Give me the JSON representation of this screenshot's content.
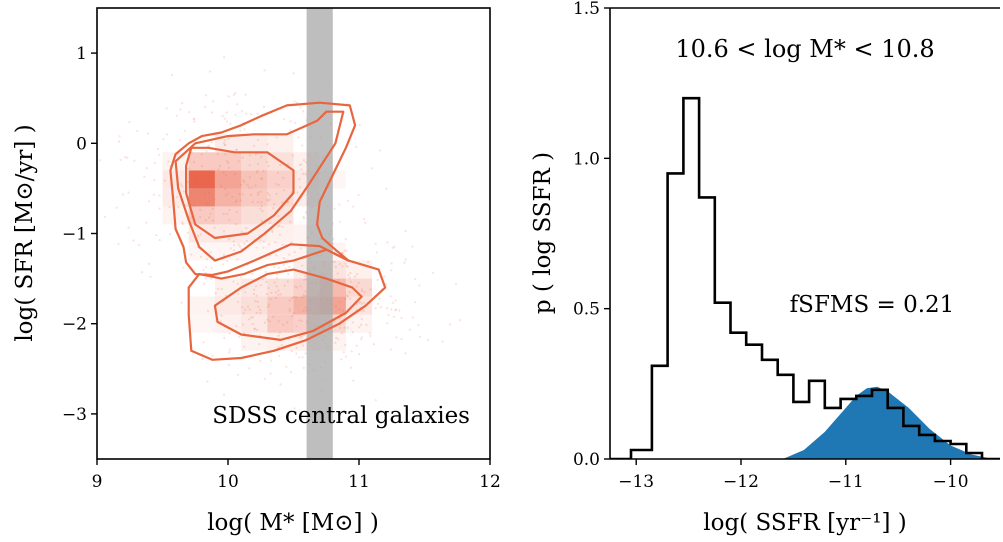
{
  "chart_data": [
    {
      "type": "heatmap",
      "xlabel": "log( M* [M⊙] )",
      "ylabel": "log( SFR [M⊙/yr] )",
      "xlim": [
        9,
        12
      ],
      "ylim": [
        -3.5,
        1.5
      ],
      "xticks": [
        9,
        10,
        11,
        12
      ],
      "yticks": [
        1,
        0,
        -1,
        -2,
        -3
      ],
      "annotation": "SDSS central galaxies",
      "highlight_band": {
        "x_range": [
          10.6,
          10.8
        ],
        "color": "#a8a8a8"
      },
      "colors": {
        "cell": "#e8563a",
        "contour": "#e8663f",
        "scatter": "#f08a6e"
      },
      "cells": [
        {
          "x": 9.8,
          "y": -0.4,
          "w": 1.0
        },
        {
          "x": 9.8,
          "y": -0.6,
          "w": 0.8
        },
        {
          "x": 9.8,
          "y": -0.2,
          "w": 0.35
        },
        {
          "x": 9.8,
          "y": -0.8,
          "w": 0.35
        },
        {
          "x": 10.0,
          "y": -0.4,
          "w": 0.6
        },
        {
          "x": 10.0,
          "y": -0.6,
          "w": 0.5
        },
        {
          "x": 10.0,
          "y": -0.2,
          "w": 0.35
        },
        {
          "x": 10.0,
          "y": -0.8,
          "w": 0.3
        },
        {
          "x": 10.2,
          "y": -0.4,
          "w": 0.4
        },
        {
          "x": 10.2,
          "y": -0.6,
          "w": 0.35
        },
        {
          "x": 10.2,
          "y": -0.2,
          "w": 0.25
        },
        {
          "x": 10.2,
          "y": -0.8,
          "w": 0.22
        },
        {
          "x": 10.4,
          "y": -0.4,
          "w": 0.3
        },
        {
          "x": 10.4,
          "y": -0.6,
          "w": 0.25
        },
        {
          "x": 10.4,
          "y": -0.2,
          "w": 0.2
        },
        {
          "x": 10.4,
          "y": -0.8,
          "w": 0.18
        },
        {
          "x": 9.6,
          "y": -0.4,
          "w": 0.15
        },
        {
          "x": 9.6,
          "y": -0.6,
          "w": 0.12
        },
        {
          "x": 9.6,
          "y": -0.8,
          "w": 0.08
        },
        {
          "x": 9.6,
          "y": -0.2,
          "w": 0.08
        },
        {
          "x": 9.8,
          "y": -1.0,
          "w": 0.15
        },
        {
          "x": 10.0,
          "y": -1.0,
          "w": 0.15
        },
        {
          "x": 10.2,
          "y": -1.0,
          "w": 0.12
        },
        {
          "x": 10.4,
          "y": -1.0,
          "w": 0.1
        },
        {
          "x": 10.0,
          "y": 0.0,
          "w": 0.12
        },
        {
          "x": 10.2,
          "y": 0.0,
          "w": 0.12
        },
        {
          "x": 10.4,
          "y": 0.0,
          "w": 0.1
        },
        {
          "x": 10.6,
          "y": -0.4,
          "w": 0.15
        },
        {
          "x": 10.6,
          "y": -0.6,
          "w": 0.12
        },
        {
          "x": 10.6,
          "y": -0.2,
          "w": 0.1
        },
        {
          "x": 9.8,
          "y": -1.2,
          "w": 0.06
        },
        {
          "x": 10.0,
          "y": -1.2,
          "w": 0.06
        },
        {
          "x": 10.2,
          "y": -1.2,
          "w": 0.06
        },
        {
          "x": 10.4,
          "y": -1.2,
          "w": 0.07
        },
        {
          "x": 10.6,
          "y": -1.2,
          "w": 0.08
        },
        {
          "x": 10.6,
          "y": -1.0,
          "w": 0.08
        },
        {
          "x": 10.8,
          "y": -0.4,
          "w": 0.06
        },
        {
          "x": 10.4,
          "y": -1.8,
          "w": 0.35
        },
        {
          "x": 10.6,
          "y": -1.8,
          "w": 0.5
        },
        {
          "x": 10.8,
          "y": -1.8,
          "w": 0.6
        },
        {
          "x": 10.8,
          "y": -1.6,
          "w": 0.45
        },
        {
          "x": 10.6,
          "y": -1.6,
          "w": 0.3
        },
        {
          "x": 10.4,
          "y": -1.6,
          "w": 0.22
        },
        {
          "x": 10.2,
          "y": -1.8,
          "w": 0.22
        },
        {
          "x": 10.2,
          "y": -2.0,
          "w": 0.15
        },
        {
          "x": 10.4,
          "y": -2.0,
          "w": 0.35
        },
        {
          "x": 10.6,
          "y": -2.0,
          "w": 0.3
        },
        {
          "x": 10.8,
          "y": -2.0,
          "w": 0.25
        },
        {
          "x": 10.0,
          "y": -1.8,
          "w": 0.15
        },
        {
          "x": 10.0,
          "y": -2.0,
          "w": 0.1
        },
        {
          "x": 10.2,
          "y": -1.6,
          "w": 0.15
        },
        {
          "x": 11.0,
          "y": -1.6,
          "w": 0.25
        },
        {
          "x": 11.0,
          "y": -1.8,
          "w": 0.18
        },
        {
          "x": 10.8,
          "y": -1.4,
          "w": 0.18
        },
        {
          "x": 10.6,
          "y": -1.4,
          "w": 0.12
        },
        {
          "x": 11.0,
          "y": -1.4,
          "w": 0.1
        },
        {
          "x": 9.8,
          "y": -1.8,
          "w": 0.08
        },
        {
          "x": 9.8,
          "y": -2.0,
          "w": 0.06
        },
        {
          "x": 10.0,
          "y": -1.6,
          "w": 0.1
        },
        {
          "x": 10.4,
          "y": -2.2,
          "w": 0.1
        },
        {
          "x": 10.6,
          "y": -2.2,
          "w": 0.1
        },
        {
          "x": 10.2,
          "y": -2.2,
          "w": 0.08
        },
        {
          "x": 10.8,
          "y": -2.2,
          "w": 0.08
        },
        {
          "x": 11.0,
          "y": -2.0,
          "w": 0.08
        },
        {
          "x": 10.8,
          "y": -1.2,
          "w": 0.07
        }
      ],
      "contours": [
        [
          [
            9.72,
            -0.05
          ],
          [
            9.85,
            -0.05
          ],
          [
            10.05,
            -0.1
          ],
          [
            10.3,
            -0.1
          ],
          [
            10.5,
            -0.3
          ],
          [
            10.5,
            -0.55
          ],
          [
            10.35,
            -0.8
          ],
          [
            10.15,
            -1.0
          ],
          [
            9.9,
            -1.05
          ],
          [
            9.75,
            -0.9
          ],
          [
            9.68,
            -0.55
          ],
          [
            9.68,
            -0.25
          ]
        ],
        [
          [
            9.75,
            0.0
          ],
          [
            10.0,
            0.08
          ],
          [
            10.2,
            0.1
          ],
          [
            10.45,
            0.1
          ],
          [
            10.68,
            0.25
          ],
          [
            10.75,
            0.35
          ],
          [
            10.88,
            0.35
          ],
          [
            10.82,
            0.0
          ],
          [
            10.62,
            -0.45
          ],
          [
            10.48,
            -0.75
          ],
          [
            10.28,
            -1.0
          ],
          [
            10.1,
            -1.2
          ],
          [
            9.9,
            -1.3
          ],
          [
            9.78,
            -1.15
          ],
          [
            9.7,
            -0.85
          ],
          [
            9.62,
            -0.5
          ],
          [
            9.6,
            -0.2
          ]
        ],
        [
          [
            9.9,
            -1.8
          ],
          [
            10.1,
            -1.6
          ],
          [
            10.3,
            -1.45
          ],
          [
            10.5,
            -1.4
          ],
          [
            10.75,
            -1.5
          ],
          [
            10.95,
            -1.6
          ],
          [
            11.02,
            -1.7
          ],
          [
            10.9,
            -1.88
          ],
          [
            10.65,
            -2.08
          ],
          [
            10.4,
            -2.18
          ],
          [
            10.1,
            -2.12
          ],
          [
            9.92,
            -1.98
          ]
        ],
        [
          [
            9.72,
            -2.3
          ],
          [
            9.88,
            -2.4
          ],
          [
            10.1,
            -2.38
          ],
          [
            10.35,
            -2.3
          ],
          [
            10.6,
            -2.18
          ],
          [
            10.85,
            -2.0
          ],
          [
            11.05,
            -1.8
          ],
          [
            11.2,
            -1.6
          ],
          [
            11.15,
            -1.4
          ],
          [
            10.92,
            -1.3
          ],
          [
            10.75,
            -1.18
          ],
          [
            10.5,
            -1.3
          ],
          [
            10.3,
            -1.35
          ],
          [
            10.12,
            -1.45
          ],
          [
            9.95,
            -1.5
          ],
          [
            9.78,
            -1.45
          ],
          [
            9.7,
            -1.6
          ],
          [
            9.7,
            -1.9
          ]
        ],
        [
          [
            9.88,
            -1.46
          ],
          [
            9.75,
            -1.45
          ],
          [
            9.68,
            -1.32
          ],
          [
            9.66,
            -1.15
          ],
          [
            9.6,
            -0.95
          ],
          [
            9.58,
            -0.6
          ],
          [
            9.56,
            -0.3
          ],
          [
            9.6,
            -0.12
          ],
          [
            9.7,
            0.0
          ],
          [
            9.8,
            0.08
          ],
          [
            9.95,
            0.12
          ],
          [
            10.1,
            0.2
          ],
          [
            10.25,
            0.3
          ],
          [
            10.45,
            0.42
          ],
          [
            10.7,
            0.45
          ],
          [
            10.93,
            0.42
          ],
          [
            10.97,
            0.2
          ],
          [
            10.9,
            -0.05
          ],
          [
            10.8,
            -0.35
          ],
          [
            10.7,
            -0.65
          ],
          [
            10.68,
            -0.9
          ],
          [
            10.72,
            -1.05
          ],
          [
            10.82,
            -1.18
          ],
          [
            10.92,
            -1.3
          ],
          [
            10.7,
            -1.14
          ],
          [
            10.48,
            -1.12
          ],
          [
            10.2,
            -1.3
          ],
          [
            10.0,
            -1.42
          ]
        ]
      ]
    },
    {
      "type": "area",
      "title": "10.6 < log M* < 10.8",
      "xlabel": "log( SSFR [yr⁻¹] )",
      "ylabel": "p ( log SSFR )",
      "xlim": [
        -13.25,
        -9.5
      ],
      "ylim": [
        0.0,
        1.5
      ],
      "xticks": [
        -13,
        -12,
        -11,
        -10
      ],
      "yticks": [
        0.0,
        0.5,
        1.0,
        1.5
      ],
      "annotation": "fSFMS = 0.21",
      "colors": {
        "step": "#000000",
        "fill": "#1f77b4"
      },
      "histogram": {
        "bin_edges": [
          -13.25,
          -13.05,
          -12.85,
          -12.7,
          -12.55,
          -12.4,
          -12.25,
          -12.1,
          -11.95,
          -11.8,
          -11.65,
          -11.5,
          -11.35,
          -11.2,
          -11.05,
          -10.9,
          -10.75,
          -10.6,
          -10.45,
          -10.3,
          -10.15,
          -10.0,
          -9.85,
          -9.7,
          -9.5
        ],
        "counts": [
          0.0,
          0.03,
          0.31,
          0.95,
          1.2,
          0.87,
          0.52,
          0.42,
          0.38,
          0.33,
          0.28,
          0.19,
          0.26,
          0.17,
          0.2,
          0.21,
          0.23,
          0.17,
          0.11,
          0.08,
          0.06,
          0.05,
          0.02,
          0.0
        ]
      },
      "sfms_curve": {
        "x": [
          -11.6,
          -11.4,
          -11.2,
          -11.0,
          -10.9,
          -10.8,
          -10.7,
          -10.6,
          -10.4,
          -10.2,
          -10.0,
          -9.8,
          -9.6
        ],
        "y": [
          0.0,
          0.03,
          0.09,
          0.17,
          0.21,
          0.235,
          0.24,
          0.225,
          0.17,
          0.1,
          0.045,
          0.015,
          0.0
        ]
      }
    }
  ]
}
